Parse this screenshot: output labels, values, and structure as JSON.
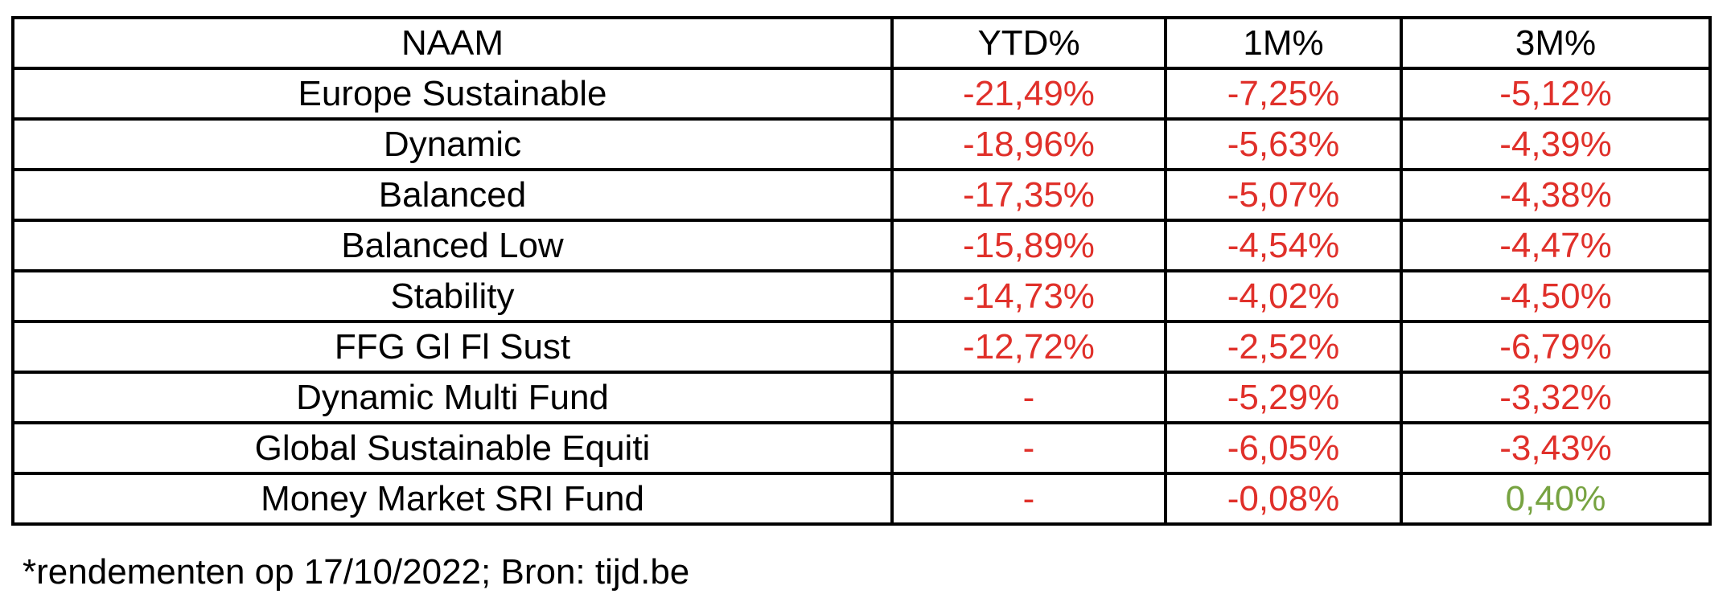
{
  "colors": {
    "negative": "#e0302a",
    "positive": "#77a341",
    "text": "#000000",
    "border": "#000000"
  },
  "table": {
    "headers": [
      "NAAM",
      "YTD%",
      "1M%",
      "3M%"
    ],
    "rows": [
      {
        "naam": "Europe Sustainable",
        "ytd": "-21,49%",
        "m1": "-7,25%",
        "m3": "-5,12%"
      },
      {
        "naam": "Dynamic",
        "ytd": "-18,96%",
        "m1": "-5,63%",
        "m3": "-4,39%"
      },
      {
        "naam": "Balanced",
        "ytd": "-17,35%",
        "m1": "-5,07%",
        "m3": "-4,38%"
      },
      {
        "naam": "Balanced Low",
        "ytd": "-15,89%",
        "m1": "-4,54%",
        "m3": "-4,47%"
      },
      {
        "naam": "Stability",
        "ytd": "-14,73%",
        "m1": "-4,02%",
        "m3": "-4,50%"
      },
      {
        "naam": "FFG Gl Fl Sust",
        "ytd": "-12,72%",
        "m1": "-2,52%",
        "m3": "-6,79%"
      },
      {
        "naam": "Dynamic Multi Fund",
        "ytd": "-",
        "m1": "-5,29%",
        "m3": "-3,32%"
      },
      {
        "naam": "Global Sustainable Equiti",
        "ytd": "-",
        "m1": "-6,05%",
        "m3": "-3,43%"
      },
      {
        "naam": "Money Market SRI Fund",
        "ytd": "-",
        "m1": "-0,08%",
        "m3": "0,40%"
      }
    ]
  },
  "footnote": "*rendementen op 17/10/2022; Bron: tijd.be"
}
